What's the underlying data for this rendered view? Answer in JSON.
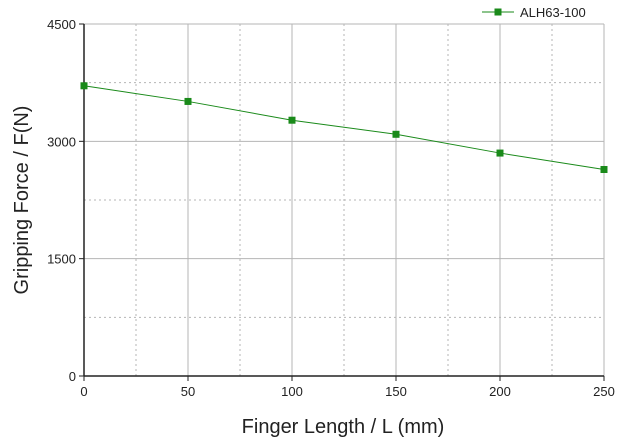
{
  "chart_data": {
    "type": "line",
    "title": "",
    "xlabel": "Finger Length / L (mm)",
    "ylabel": "Gripping Force / F(N)",
    "xlim": [
      0,
      250
    ],
    "ylim": [
      0,
      4500
    ],
    "xticks": [
      0,
      50,
      100,
      150,
      200,
      250
    ],
    "yticks": [
      0,
      1500,
      3000,
      4500
    ],
    "x_tick_labels": [
      "0",
      "50",
      "100",
      "150",
      "200",
      "250"
    ],
    "y_tick_labels": [
      "0",
      "1500",
      "3000",
      "4500"
    ],
    "grid": true,
    "legend_position": "top-right",
    "colors": {
      "series": "#1a8a1a",
      "grid": "#b5b5b5",
      "axis": "#222222"
    },
    "series": [
      {
        "name": "ALH63-100",
        "x": [
          0,
          50,
          100,
          150,
          200,
          250
        ],
        "values": [
          3710,
          3510,
          3270,
          3090,
          2850,
          2640
        ]
      }
    ]
  }
}
